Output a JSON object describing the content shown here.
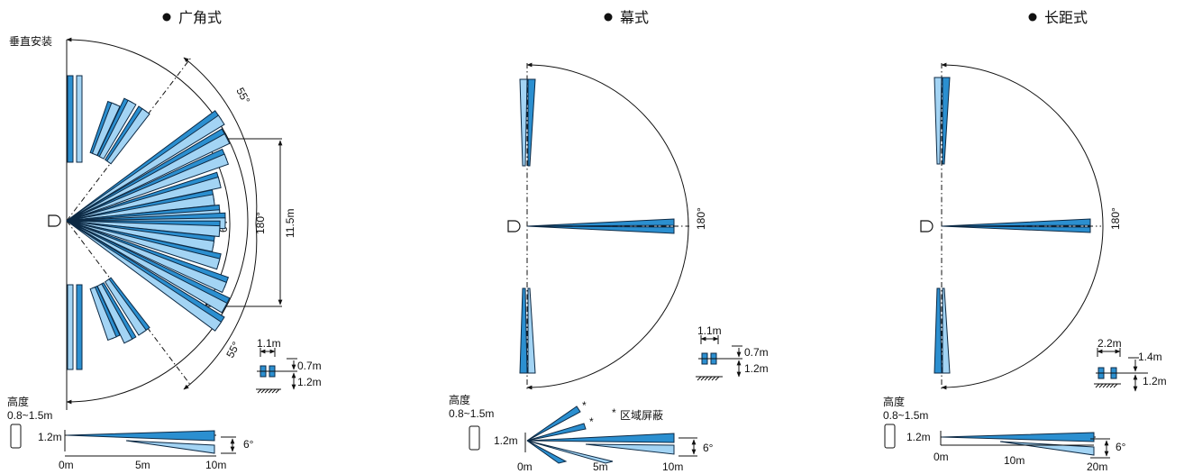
{
  "panels": [
    {
      "id": "wide",
      "title": "广角式",
      "mount_label": "垂直安装",
      "angle_top": "55°",
      "angle_bottom": "55°",
      "angle_center": "64°",
      "angle_full": "180°",
      "span": "11.5m",
      "dim_w": "1.1m",
      "dim_h1": "0.7m",
      "dim_h2": "1.2m",
      "height_label": "高度",
      "height_range": "0.8~1.5m",
      "side_height": "1.2m",
      "side_angle": "6°",
      "x_ticks": [
        "0m",
        "5m",
        "10m"
      ]
    },
    {
      "id": "curtain",
      "title": "幕式",
      "angle_full": "180°",
      "dim_w": "1.1m",
      "dim_h1": "0.7m",
      "dim_h2": "1.2m",
      "height_label": "高度",
      "height_range": "0.8~1.5m",
      "side_height": "1.2m",
      "side_angle": "6°",
      "mask_mark": "*",
      "mask_note": "区域屏蔽",
      "x_ticks": [
        "0m",
        "5m",
        "10m"
      ]
    },
    {
      "id": "long",
      "title": "长距式",
      "angle_full": "180°",
      "dim_w": "2.2m",
      "dim_h1": "1.4m",
      "dim_h2": "1.2m",
      "height_label": "高度",
      "height_range": "0.8~1.5m",
      "side_height": "1.2m",
      "side_angle": "6°",
      "x_ticks": [
        "0m",
        "10m",
        "20m"
      ]
    }
  ],
  "colors": {
    "beam_dark": "#2b8fd0",
    "beam_light": "#a3d4f4",
    "outline": "#0d2a45"
  }
}
